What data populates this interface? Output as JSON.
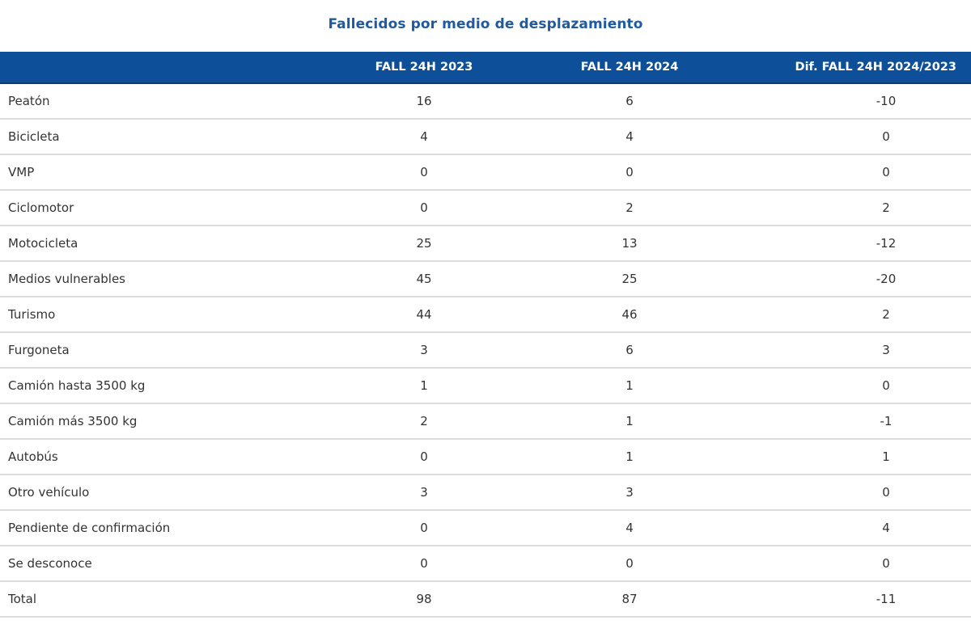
{
  "title": "Fallecidos por medio de desplazamiento",
  "header_color": "#0e4f9a",
  "title_color": "#1f5aa0",
  "columns": [
    "",
    "FALL 24H 2023",
    "FALL 24H 2024",
    "Dif. FALL 24H 2024/2023"
  ],
  "rows": [
    {
      "label": "Peatón",
      "v2023": "16",
      "v2024": "6",
      "diff": "-10"
    },
    {
      "label": "Bicicleta",
      "v2023": "4",
      "v2024": "4",
      "diff": "0"
    },
    {
      "label": "VMP",
      "v2023": "0",
      "v2024": "0",
      "diff": "0"
    },
    {
      "label": "Ciclomotor",
      "v2023": "0",
      "v2024": "2",
      "diff": "2"
    },
    {
      "label": "Motocicleta",
      "v2023": "25",
      "v2024": "13",
      "diff": "-12"
    },
    {
      "label": "Medios vulnerables",
      "v2023": "45",
      "v2024": "25",
      "diff": "-20"
    },
    {
      "label": "Turismo",
      "v2023": "44",
      "v2024": "46",
      "diff": "2"
    },
    {
      "label": "Furgoneta",
      "v2023": "3",
      "v2024": "6",
      "diff": "3"
    },
    {
      "label": "Camión hasta 3500 kg",
      "v2023": "1",
      "v2024": "1",
      "diff": "0"
    },
    {
      "label": "Camión más 3500 kg",
      "v2023": "2",
      "v2024": "1",
      "diff": "-1"
    },
    {
      "label": "Autobús",
      "v2023": "0",
      "v2024": "1",
      "diff": "1"
    },
    {
      "label": "Otro vehículo",
      "v2023": "3",
      "v2024": "3",
      "diff": "0"
    },
    {
      "label": "Pendiente de confirmación",
      "v2023": "0",
      "v2024": "4",
      "diff": "4"
    },
    {
      "label": "Se desconoce",
      "v2023": "0",
      "v2024": "0",
      "diff": "0"
    },
    {
      "label": "Total",
      "v2023": "98",
      "v2024": "87",
      "diff": "-11"
    }
  ]
}
